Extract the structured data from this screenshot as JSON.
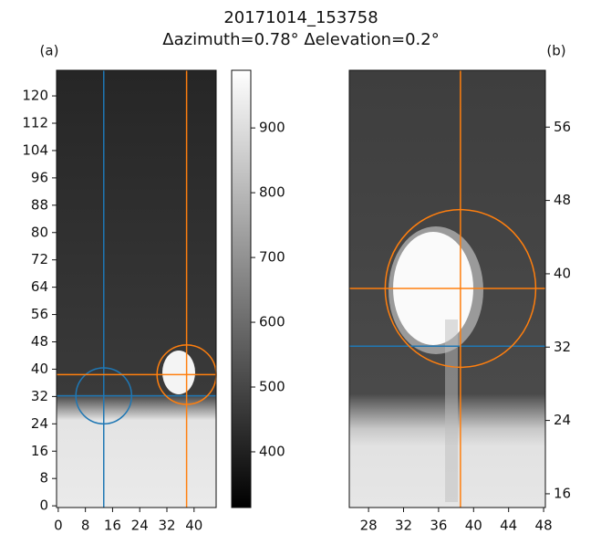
{
  "title": [
    "20171014_153758",
    "Δazimuth=0.78° Δelevation=0.2°"
  ],
  "chart_data": [
    {
      "type": "image",
      "label": "(a)",
      "xlim": [
        -0.5,
        46.5
      ],
      "ylim": [
        -0.5,
        127.5
      ],
      "xticks": [
        0,
        8,
        16,
        24,
        32,
        40
      ],
      "yticks": [
        0,
        8,
        16,
        24,
        32,
        40,
        48,
        56,
        64,
        72,
        80,
        88,
        96,
        104,
        112,
        120
      ],
      "yaxis_side": "left",
      "markers": [
        {
          "color": "#1f77b4",
          "x": 13.4,
          "y": 32.2,
          "r": 8.2
        },
        {
          "color": "#ff7f0e",
          "x": 37.8,
          "y": 38.4,
          "r": 8.7
        }
      ],
      "colorbar": {
        "lim": [
          314,
          989
        ],
        "ticks": [
          400,
          500,
          600,
          700,
          800,
          900
        ]
      }
    },
    {
      "type": "image",
      "label": "(b)",
      "xlim": [
        25.8,
        48.2
      ],
      "ylim": [
        14.5,
        62.2
      ],
      "xticks": [
        28,
        32,
        36,
        40,
        44,
        48
      ],
      "yticks": [
        16,
        24,
        32,
        40,
        48,
        56
      ],
      "yaxis_side": "right",
      "markers": [
        {
          "color": "#1f77b4",
          "y": 32.1
        },
        {
          "color": "#ff7f0e",
          "x": 38.5,
          "y": 38.4,
          "r": 8.6
        }
      ]
    }
  ]
}
